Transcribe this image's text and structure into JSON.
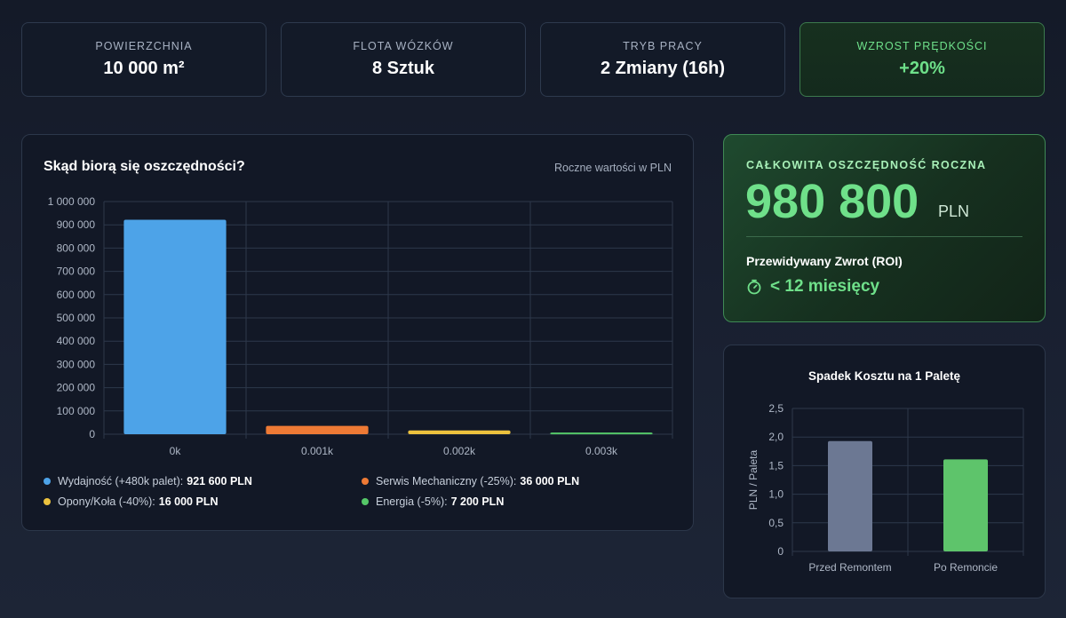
{
  "stats": [
    {
      "label": "POWIERZCHNIA",
      "value": "10 000 m²"
    },
    {
      "label": "FLOTA WÓZKÓW",
      "value": "8 Sztuk"
    },
    {
      "label": "TRYB PRACY",
      "value": "2 Zmiany (16h)"
    },
    {
      "label": "WZROST PRĘDKOŚCI",
      "value": "+20%"
    }
  ],
  "savings_chart": {
    "title": "Skąd biorą się oszczędności?",
    "subtitle": "Roczne wartości w PLN"
  },
  "legend": [
    {
      "label": "Wydajność (+480k palet):",
      "value": "921 600 PLN",
      "color": "#4da3e8"
    },
    {
      "label": "Serwis Mechaniczny (-25%):",
      "value": "36 000 PLN",
      "color": "#ee7a35"
    },
    {
      "label": "Opony/Koła (-40%):",
      "value": "16 000 PLN",
      "color": "#ecc23e"
    },
    {
      "label": "Energia (-5%):",
      "value": "7 200 PLN",
      "color": "#55c768"
    }
  ],
  "total": {
    "caption": "CAŁKOWITA OSZCZĘDNOŚĆ ROCZNA",
    "value": "980 800",
    "unit": "PLN",
    "roi_label": "Przewidywany Zwrot (ROI)",
    "roi_value": "< 12 miesięcy"
  },
  "pallet": {
    "title": "Spadek Kosztu na 1 Paletę"
  },
  "chart_data": [
    {
      "type": "bar",
      "title": "Skąd biorą się oszczędności?",
      "subtitle": "Roczne wartości w PLN",
      "categories": [
        "0k",
        "0.001k",
        "0.002k",
        "0.003k"
      ],
      "values": [
        921600,
        36000,
        16000,
        7200
      ],
      "colors": [
        "#4da3e8",
        "#ee7a35",
        "#ecc23e",
        "#55c768"
      ],
      "yticks": [
        0,
        100000,
        200000,
        300000,
        400000,
        500000,
        600000,
        700000,
        800000,
        900000,
        1000000
      ],
      "ytick_labels": [
        "0",
        "100 000",
        "200 000",
        "300 000",
        "400 000",
        "500 000",
        "600 000",
        "700 000",
        "800 000",
        "900 000",
        "1 000 000"
      ],
      "ylim": [
        0,
        1000000
      ],
      "xlabel": "",
      "ylabel": ""
    },
    {
      "type": "bar",
      "title": "Spadek Kosztu na 1 Paletę",
      "categories": [
        "Przed Remontem",
        "Po Remoncie"
      ],
      "values": [
        1.93,
        1.61
      ],
      "colors": [
        "#6c7893",
        "#5ec46b"
      ],
      "yticks": [
        0,
        0.5,
        1.0,
        1.5,
        2.0,
        2.5
      ],
      "ytick_labels": [
        "0",
        "0,5",
        "1,0",
        "1,5",
        "2,0",
        "2,5"
      ],
      "ylim": [
        0,
        2.5
      ],
      "ylabel": "PLN / Paleta",
      "xlabel": ""
    }
  ]
}
